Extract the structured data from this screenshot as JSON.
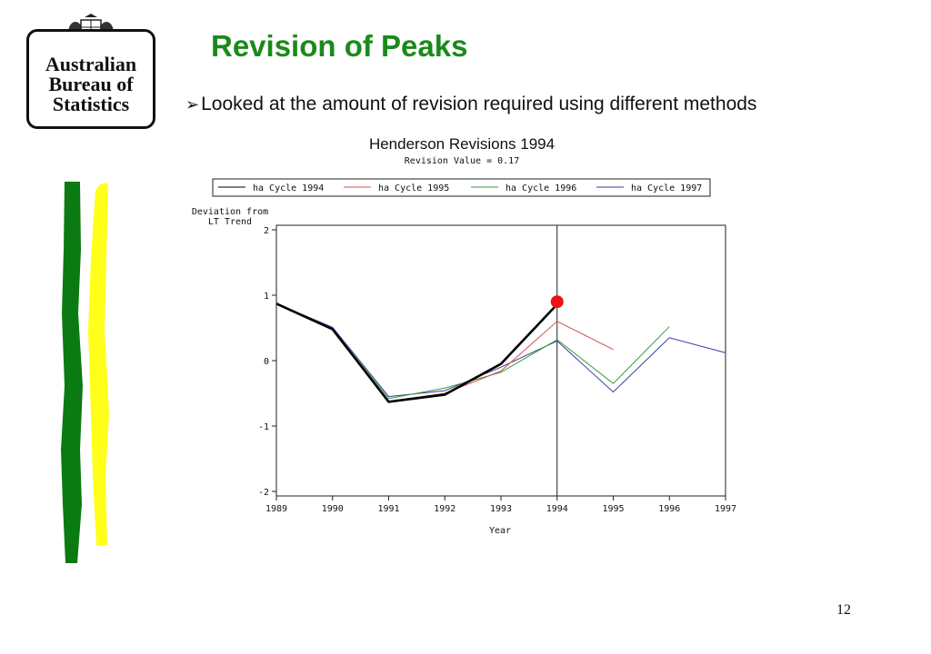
{
  "slide": {
    "title": "Revision of Peaks",
    "bullet": "Looked at the amount of revision required using different methods",
    "page_number": "12",
    "logo_lines": [
      "Australian",
      "Bureau of",
      "Statistics"
    ],
    "logo_crest_label": "AUSTRALIA"
  },
  "chart_data": {
    "type": "line",
    "title": "Henderson Revisions 1994",
    "subtitle": "Revision Value = 0.17",
    "ylabel": [
      "Deviation from",
      "LT Trend"
    ],
    "xlabel": "Year",
    "xlim": [
      1989,
      1997
    ],
    "ylim": [
      -2,
      2
    ],
    "x_ticks": [
      "1989",
      "1990",
      "1991",
      "1992",
      "1993",
      "1994",
      "1995",
      "1996",
      "1997"
    ],
    "y_ticks": [
      "2",
      "1",
      "0",
      "-1",
      "-2"
    ],
    "vertical_marker_x": 1994,
    "peak_marker": {
      "x": 1994,
      "y": 0.9,
      "color": "#ee1111"
    },
    "legend": [
      "ha Cycle 1994",
      "ha Cycle 1995",
      "ha Cycle 1996",
      "ha Cycle 1997"
    ],
    "series": [
      {
        "name": "ha Cycle 1994",
        "color": "#000000",
        "x": [
          1989,
          1990,
          1991,
          1992,
          1993,
          1994
        ],
        "y": [
          0.87,
          0.48,
          -0.63,
          -0.52,
          -0.05,
          0.86
        ]
      },
      {
        "name": "ha Cycle 1995",
        "color": "#d05050",
        "x": [
          1989,
          1990,
          1991,
          1992,
          1993,
          1994,
          1995
        ],
        "y": [
          0.87,
          0.49,
          -0.62,
          -0.5,
          -0.16,
          0.6,
          0.17
        ]
      },
      {
        "name": "ha Cycle 1996",
        "color": "#3a9a3a",
        "x": [
          1989,
          1990,
          1991,
          1992,
          1993,
          1994,
          1995,
          1996
        ],
        "y": [
          0.87,
          0.49,
          -0.58,
          -0.42,
          -0.18,
          0.32,
          -0.35,
          0.52
        ]
      },
      {
        "name": "ha Cycle 1997",
        "color": "#3a3aa0",
        "x": [
          1989,
          1990,
          1991,
          1992,
          1993,
          1994,
          1995,
          1996,
          1997
        ],
        "y": [
          0.87,
          0.51,
          -0.55,
          -0.46,
          -0.1,
          0.3,
          -0.48,
          0.35,
          0.12
        ]
      }
    ]
  }
}
